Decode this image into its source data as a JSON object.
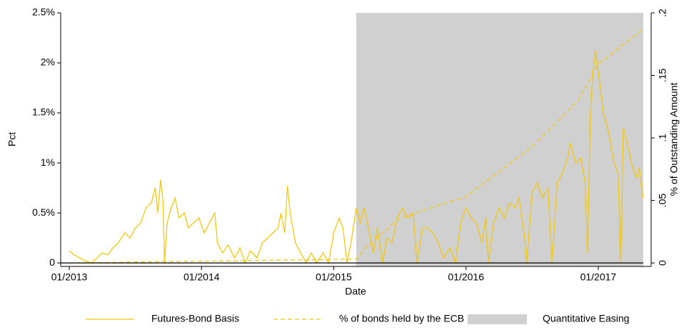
{
  "chart_data": {
    "type": "line",
    "xlabel": "Date",
    "ylabel": "Pct",
    "y2label": "% of Outstanding Amount",
    "xlim": [
      2012.935,
      2017.4
    ],
    "xticks": [
      {
        "value": 2013,
        "label": "01/2013"
      },
      {
        "value": 2014,
        "label": "01/2014"
      },
      {
        "value": 2015,
        "label": "01/2015"
      },
      {
        "value": 2016,
        "label": "01/2016"
      },
      {
        "value": 2017,
        "label": "01/2017"
      }
    ],
    "ylim": [
      -0.035,
      2.5
    ],
    "yticks": [
      0,
      {
        "value": 0.5,
        "label": "0.5%"
      },
      {
        "value": 1,
        "label": "1%"
      },
      {
        "value": 1.5,
        "label": "1.5%"
      },
      {
        "value": 2,
        "label": "2%"
      },
      {
        "value": 2.5,
        "label": "2.5%"
      }
    ],
    "y2lim": [
      -0.0028,
      0.2
    ],
    "y2ticks": [
      0,
      {
        "value": 0.05,
        "label": ".05"
      },
      {
        "value": 0.1,
        "label": ".1"
      },
      {
        "value": 0.15,
        "label": ".15"
      },
      {
        "value": 0.2,
        "label": ".2"
      }
    ],
    "legend": "bottom",
    "series": [
      {
        "name": "Futures-Bond Basis",
        "color": "#f2c80f",
        "style": "solid",
        "x": [
          2013.0,
          2013.04,
          2013.08,
          2013.12,
          2013.17,
          2013.21,
          2013.25,
          2013.29,
          2013.33,
          2013.37,
          2013.42,
          2013.46,
          2013.5,
          2013.54,
          2013.58,
          2013.62,
          2013.65,
          2013.67,
          2013.69,
          2013.71,
          2013.72,
          2013.74,
          2013.77,
          2013.8,
          2013.83,
          2013.87,
          2013.9,
          2013.94,
          2013.98,
          2014.02,
          2014.06,
          2014.1,
          2014.12,
          2014.16,
          2014.2,
          2014.25,
          2014.29,
          2014.33,
          2014.37,
          2014.42,
          2014.46,
          2014.5,
          2014.54,
          2014.58,
          2014.6,
          2014.63,
          2014.65,
          2014.67,
          2014.71,
          2014.75,
          2014.79,
          2014.83,
          2014.87,
          2014.92,
          2014.96,
          2015.0,
          2015.04,
          2015.07,
          2015.1,
          2015.13,
          2015.17,
          2015.2,
          2015.23,
          2015.27,
          2015.3,
          2015.33,
          2015.37,
          2015.4,
          2015.44,
          2015.48,
          2015.52,
          2015.56,
          2015.6,
          2015.63,
          2015.67,
          2015.71,
          2015.75,
          2015.79,
          2015.83,
          2015.88,
          2015.92,
          2015.96,
          2016.0,
          2016.04,
          2016.08,
          2016.12,
          2016.15,
          2016.17,
          2016.21,
          2016.25,
          2016.29,
          2016.33,
          2016.37,
          2016.4,
          2016.44,
          2016.46,
          2016.5,
          2016.54,
          2016.58,
          2016.62,
          2016.65,
          2016.69,
          2016.73,
          2016.77,
          2016.79,
          2016.83,
          2016.87,
          2016.9,
          2016.92,
          2016.94,
          2016.96,
          2016.98,
          2017.02,
          2017.04,
          2017.08,
          2017.12,
          2017.15,
          2017.17,
          2017.19,
          2017.22,
          2017.25,
          2017.29,
          2017.31,
          2017.34
        ],
        "values": [
          0.12,
          0.08,
          0.05,
          0.02,
          0.0,
          0.05,
          0.1,
          0.08,
          0.15,
          0.2,
          0.3,
          0.25,
          0.35,
          0.4,
          0.55,
          0.6,
          0.75,
          0.5,
          0.83,
          0.6,
          0.0,
          0.4,
          0.55,
          0.65,
          0.45,
          0.5,
          0.35,
          0.4,
          0.45,
          0.3,
          0.4,
          0.5,
          0.2,
          0.1,
          0.18,
          0.05,
          0.15,
          0.0,
          0.12,
          0.05,
          0.2,
          0.25,
          0.3,
          0.35,
          0.5,
          0.3,
          0.77,
          0.5,
          0.2,
          0.1,
          0.0,
          0.1,
          0.0,
          0.1,
          0.0,
          0.3,
          0.45,
          0.35,
          0.0,
          0.2,
          0.55,
          0.4,
          0.55,
          0.3,
          0.1,
          0.35,
          0.0,
          0.25,
          0.2,
          0.45,
          0.55,
          0.45,
          0.5,
          0.0,
          0.35,
          0.35,
          0.3,
          0.2,
          0.05,
          0.15,
          0.0,
          0.4,
          0.55,
          0.45,
          0.4,
          0.2,
          0.45,
          0.0,
          0.4,
          0.55,
          0.45,
          0.6,
          0.55,
          0.65,
          0.3,
          0.0,
          0.7,
          0.8,
          0.65,
          0.75,
          0.0,
          0.8,
          0.9,
          1.05,
          1.2,
          1.0,
          1.05,
          0.8,
          0.1,
          1.5,
          1.9,
          2.12,
          1.7,
          1.5,
          1.3,
          1.0,
          0.9,
          0.0,
          1.35,
          1.2,
          1.0,
          0.85,
          0.95,
          0.65
        ]
      },
      {
        "name": "% of bonds held by the ECB",
        "color": "#f2c80f",
        "style": "dashed",
        "axis": "y2",
        "x": [
          2013.0,
          2015.17,
          2015.25,
          2015.5,
          2016.0,
          2016.5,
          2016.85,
          2017.0,
          2017.34
        ],
        "values": [
          0,
          0.003,
          0.013,
          0.036,
          0.053,
          0.093,
          0.13,
          0.159,
          0.187
        ]
      },
      {
        "name": "Quantitative Easing",
        "color": "#d0d0d0",
        "style": "band",
        "x": [
          2015.17,
          2017.34
        ]
      }
    ]
  }
}
